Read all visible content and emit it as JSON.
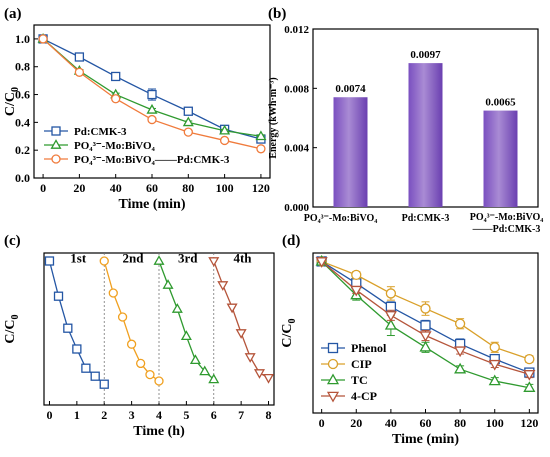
{
  "chart_data": [
    {
      "panel": "(a)",
      "type": "line",
      "xlabel": "Time (min)",
      "ylabel": "C/C",
      "ylabel_sub": "0",
      "xlim": [
        -5,
        125
      ],
      "ylim": [
        0,
        1.1
      ],
      "xticks": [
        "0",
        "20",
        "40",
        "60",
        "80",
        "100",
        "120"
      ],
      "yticks": [
        "0.0",
        "0.2",
        "0.4",
        "0.6",
        "0.8",
        "1.0"
      ],
      "legend_position": "bottom-left",
      "series": [
        {
          "name": "Pd:CMK-3",
          "marker": "square",
          "color": "#2456a4",
          "x": [
            0,
            20,
            40,
            60,
            80,
            100,
            120
          ],
          "y": [
            1.0,
            0.87,
            0.73,
            0.6,
            0.48,
            0.35,
            0.28
          ],
          "err": [
            0,
            0.01,
            0.02,
            0.04,
            0.02,
            0.02,
            0.02
          ]
        },
        {
          "name": "PO₄³⁻-Mo:BiVO₄",
          "marker": "triangle",
          "color": "#2f9a2f",
          "x": [
            0,
            20,
            40,
            60,
            80,
            100,
            120
          ],
          "y": [
            1.0,
            0.77,
            0.6,
            0.49,
            0.4,
            0.34,
            0.3
          ],
          "err": [
            0,
            0.01,
            0.01,
            0.01,
            0.01,
            0.01,
            0.01
          ]
        },
        {
          "name": "PO₄³⁻-Mo:BiVO₄——Pd:CMK-3",
          "marker": "circle",
          "color": "#f07b3c",
          "x": [
            0,
            20,
            40,
            60,
            80,
            100,
            120
          ],
          "y": [
            1.0,
            0.76,
            0.57,
            0.42,
            0.33,
            0.27,
            0.21
          ],
          "err": [
            0,
            0.01,
            0.01,
            0.01,
            0.01,
            0.01,
            0.01
          ]
        }
      ]
    },
    {
      "panel": "(b)",
      "type": "bar",
      "ylabel": "Energy (kWh·m⁻³)",
      "ylim": [
        0,
        0.012
      ],
      "yticks": [
        "0.000",
        "0.004",
        "0.008",
        "0.012"
      ],
      "categories": [
        "PO₄³⁻-Mo:BiVO₄",
        "Pd:CMK-3",
        "PO₄³⁻-Mo:BiVO₄——Pd:CMK-3"
      ],
      "values": [
        0.0074,
        0.0097,
        0.0065
      ],
      "value_labels": [
        "0.0074",
        "0.0097",
        "0.0065"
      ],
      "bar_color": "#a98bd4"
    },
    {
      "panel": "(c)",
      "type": "line",
      "xlabel": "Time (h)",
      "ylabel": "C/C",
      "ylabel_sub": "0",
      "xlim": [
        -0.2,
        8.2
      ],
      "ylim": [
        0.1,
        1.05
      ],
      "xticks": [
        "0",
        "1",
        "2",
        "3",
        "4",
        "5",
        "6",
        "7",
        "8"
      ],
      "cycle_labels": [
        "1st",
        "2nd",
        "3rd",
        "4th"
      ],
      "dividers_x": [
        2,
        4,
        6
      ],
      "series": [
        {
          "name": "1st",
          "marker": "square",
          "color": "#2456a4",
          "x": [
            0,
            0.33,
            0.67,
            1.0,
            1.33,
            1.67,
            2.0
          ],
          "y": [
            1.0,
            0.78,
            0.58,
            0.45,
            0.33,
            0.28,
            0.23
          ]
        },
        {
          "name": "2nd",
          "marker": "circle",
          "color": "#f0a020",
          "x": [
            2.0,
            2.33,
            2.67,
            3.0,
            3.33,
            3.67,
            4.0
          ],
          "y": [
            1.0,
            0.8,
            0.65,
            0.48,
            0.36,
            0.29,
            0.25
          ]
        },
        {
          "name": "3rd",
          "marker": "triangle",
          "color": "#2f9a2f",
          "x": [
            4.0,
            4.33,
            4.67,
            5.0,
            5.33,
            5.67,
            6.0
          ],
          "y": [
            1.0,
            0.85,
            0.7,
            0.53,
            0.38,
            0.31,
            0.26
          ]
        },
        {
          "name": "4th",
          "marker": "triangle-down",
          "color": "#b5553b",
          "x": [
            6.0,
            6.33,
            6.67,
            7.0,
            7.33,
            7.67,
            8.0
          ],
          "y": [
            1.0,
            0.85,
            0.71,
            0.55,
            0.4,
            0.3,
            0.27
          ]
        }
      ]
    },
    {
      "panel": "(d)",
      "type": "line",
      "xlabel": "Time (min)",
      "ylabel": "C/C",
      "ylabel_sub": "0",
      "xlim": [
        -5,
        125
      ],
      "ylim": [
        0.1,
        1.05
      ],
      "xticks": [
        "0",
        "20",
        "40",
        "60",
        "80",
        "100",
        "120"
      ],
      "legend_position": "bottom-left",
      "series": [
        {
          "name": "Phenol",
          "marker": "square",
          "color": "#2456a4",
          "x": [
            0,
            20,
            40,
            60,
            80,
            100,
            120
          ],
          "y": [
            1.0,
            0.87,
            0.73,
            0.62,
            0.51,
            0.42,
            0.34
          ],
          "err": [
            0,
            0.02,
            0.03,
            0.03,
            0.03,
            0.02,
            0.02
          ]
        },
        {
          "name": "CIP",
          "marker": "circle",
          "color": "#d9a02a",
          "x": [
            0,
            20,
            40,
            60,
            80,
            100,
            120
          ],
          "y": [
            1.0,
            0.92,
            0.81,
            0.72,
            0.63,
            0.49,
            0.42
          ],
          "err": [
            0,
            0.02,
            0.04,
            0.04,
            0.03,
            0.03,
            0.02
          ]
        },
        {
          "name": "TC",
          "marker": "triangle",
          "color": "#2f9a2f",
          "x": [
            0,
            20,
            40,
            60,
            80,
            100,
            120
          ],
          "y": [
            1.0,
            0.8,
            0.62,
            0.49,
            0.36,
            0.29,
            0.25
          ],
          "err": [
            0,
            0.03,
            0.06,
            0.03,
            0.02,
            0.02,
            0.02
          ]
        },
        {
          "name": "4-CP",
          "marker": "triangle-down",
          "color": "#b5553b",
          "x": [
            0,
            20,
            40,
            60,
            80,
            100,
            120
          ],
          "y": [
            1.0,
            0.83,
            0.68,
            0.56,
            0.47,
            0.39,
            0.33
          ],
          "err": [
            0,
            0.02,
            0.03,
            0.03,
            0.02,
            0.02,
            0.02
          ]
        }
      ]
    }
  ]
}
